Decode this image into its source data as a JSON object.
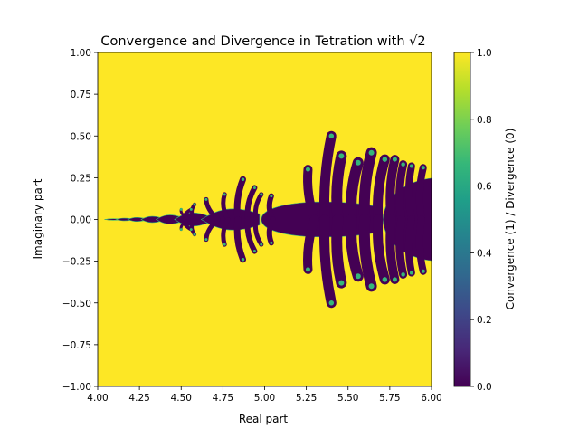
{
  "chart_data": {
    "type": "heatmap",
    "title": "Convergence and Divergence in Tetration with √2",
    "xlabel": "Real part",
    "ylabel": "Imaginary part",
    "xlim": [
      4.0,
      6.0
    ],
    "ylim": [
      -1.0,
      1.0
    ],
    "x_ticks": [
      "4.00",
      "4.25",
      "4.50",
      "4.75",
      "5.00",
      "5.25",
      "5.50",
      "5.75",
      "6.00"
    ],
    "y_ticks": [
      "1.00",
      "0.75",
      "0.50",
      "0.25",
      "0.00",
      "−0.25",
      "−0.50",
      "−0.75",
      "−1.00"
    ],
    "grid": false,
    "colormap": "viridis",
    "colorbar": {
      "label": "Convergence (1) / Divergence (0)",
      "range": [
        0.0,
        1.0
      ],
      "ticks": [
        "1.0",
        "0.8",
        "0.6",
        "0.4",
        "0.2",
        "0.0"
      ]
    },
    "values": [
      0,
      1
    ],
    "regions": [
      {
        "name": "background",
        "value": 1
      },
      {
        "name": "fractal-bulbs-along-real-axis",
        "value": 0
      }
    ]
  },
  "colors": {
    "converge": "#fde725",
    "diverge": "#440154",
    "edge": "#35b779"
  }
}
